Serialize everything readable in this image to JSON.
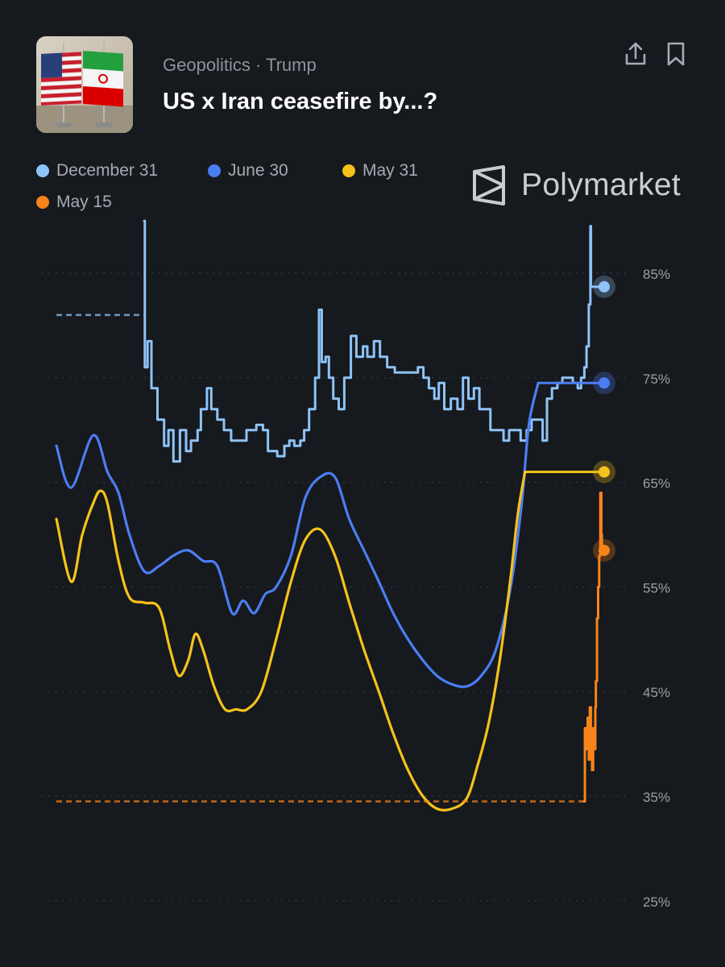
{
  "header": {
    "category": "Geopolitics · Trump",
    "title": "US x Iran ceasefire by...?",
    "thumbnail_icon": "us-iran-flags-icon",
    "share_icon": "share-icon",
    "bookmark_icon": "bookmark-icon"
  },
  "brand": {
    "name": "Polymarket",
    "logo_icon": "polymarket-logo-icon"
  },
  "colors": {
    "background": "#16191d",
    "grid": "#3a3f46",
    "tick_text": "#9aa0a6"
  },
  "chart_data": {
    "type": "line",
    "title": "",
    "xlabel": "",
    "ylabel": "",
    "ylim": [
      24,
      89
    ],
    "yticks": [
      25,
      35,
      45,
      55,
      65,
      75,
      85
    ],
    "ytick_labels": [
      "25%",
      "35%",
      "45%",
      "55%",
      "65%",
      "75%",
      "85%"
    ],
    "grid": true,
    "legend": "top-left",
    "x_domain": [
      0,
      100
    ],
    "series": [
      {
        "name": "December 31",
        "color": "#8ec3f7",
        "style": "step",
        "dashed_prefix": [
          [
            0,
            81.0
          ],
          [
            16.0,
            81.0
          ]
        ],
        "values": [
          [
            16.0,
            90.0
          ],
          [
            16.1,
            76
          ],
          [
            16.6,
            78.5
          ],
          [
            17.3,
            74
          ],
          [
            18.4,
            71
          ],
          [
            19.6,
            68.5
          ],
          [
            20.4,
            70
          ],
          [
            21.3,
            67
          ],
          [
            22.5,
            70
          ],
          [
            23.6,
            68
          ],
          [
            24.5,
            69
          ],
          [
            25.7,
            70
          ],
          [
            26.3,
            72
          ],
          [
            27.4,
            74
          ],
          [
            28.2,
            72
          ],
          [
            29.3,
            71
          ],
          [
            30.5,
            70
          ],
          [
            31.8,
            69
          ],
          [
            33.4,
            69
          ],
          [
            34.6,
            70
          ],
          [
            36.4,
            70.5
          ],
          [
            37.6,
            70
          ],
          [
            38.5,
            68
          ],
          [
            40.2,
            67.5
          ],
          [
            41.5,
            68.5
          ],
          [
            42.4,
            69
          ],
          [
            43.3,
            68.5
          ],
          [
            44.4,
            69
          ],
          [
            45.1,
            70
          ],
          [
            46.0,
            72
          ],
          [
            47.1,
            75
          ],
          [
            47.8,
            81.5
          ],
          [
            48.3,
            76.5
          ],
          [
            49.0,
            77
          ],
          [
            49.6,
            75
          ],
          [
            50.4,
            73
          ],
          [
            51.4,
            72
          ],
          [
            52.4,
            75
          ],
          [
            53.6,
            79
          ],
          [
            54.6,
            77
          ],
          [
            55.8,
            78
          ],
          [
            56.6,
            77
          ],
          [
            57.8,
            78.5
          ],
          [
            58.9,
            77
          ],
          [
            60.2,
            76
          ],
          [
            61.6,
            75.5
          ],
          [
            63.0,
            75.5
          ],
          [
            64.4,
            75.5
          ],
          [
            65.8,
            76
          ],
          [
            66.8,
            75
          ],
          [
            67.8,
            74
          ],
          [
            68.8,
            73
          ],
          [
            69.6,
            74.5
          ],
          [
            70.6,
            72
          ],
          [
            71.8,
            73
          ],
          [
            73.0,
            72
          ],
          [
            74.0,
            75
          ],
          [
            75.0,
            73
          ],
          [
            76.0,
            74
          ],
          [
            77.0,
            72
          ],
          [
            78.0,
            72
          ],
          [
            79.0,
            70
          ],
          [
            80.3,
            70
          ],
          [
            81.4,
            69
          ],
          [
            82.4,
            70
          ],
          [
            83.4,
            70
          ],
          [
            84.5,
            69
          ],
          [
            85.6,
            70
          ],
          [
            86.5,
            71
          ],
          [
            87.5,
            71
          ],
          [
            88.5,
            69
          ],
          [
            89.3,
            73
          ],
          [
            90.2,
            74
          ],
          [
            91.2,
            74.5
          ],
          [
            92.1,
            75
          ],
          [
            93.0,
            75
          ],
          [
            94.0,
            74.5
          ],
          [
            94.9,
            74
          ],
          [
            95.5,
            75
          ],
          [
            96.1,
            76
          ],
          [
            96.5,
            78
          ],
          [
            96.9,
            82
          ],
          [
            97.2,
            89.5
          ],
          [
            97.3,
            83.7
          ]
        ],
        "end_value": 83.7
      },
      {
        "name": "June 30",
        "color": "#4b7df3",
        "style": "smooth",
        "values": [
          [
            0,
            68.5
          ],
          [
            2.7,
            64.5
          ],
          [
            6.7,
            69.5
          ],
          [
            9.3,
            66
          ],
          [
            11.3,
            64
          ],
          [
            13.3,
            60
          ],
          [
            16.0,
            56.5
          ],
          [
            18.7,
            57
          ],
          [
            21.3,
            58
          ],
          [
            24.0,
            58.5
          ],
          [
            26.7,
            57.5
          ],
          [
            29.3,
            57
          ],
          [
            32.0,
            52.5
          ],
          [
            34.0,
            53.7
          ],
          [
            36.0,
            52.5
          ],
          [
            38.0,
            54.3
          ],
          [
            40.0,
            55
          ],
          [
            42.7,
            58
          ],
          [
            45.3,
            63.5
          ],
          [
            48.0,
            65.5
          ],
          [
            50.7,
            65.5
          ],
          [
            53.3,
            61.5
          ],
          [
            56.0,
            58.5
          ],
          [
            58.7,
            55.5
          ],
          [
            61.3,
            52.5
          ],
          [
            64.0,
            50
          ],
          [
            66.7,
            48
          ],
          [
            69.3,
            46.5
          ],
          [
            72.0,
            45.7
          ],
          [
            74.7,
            45.5
          ],
          [
            77.3,
            46.5
          ],
          [
            80.0,
            49
          ],
          [
            82.7,
            55
          ],
          [
            84.7,
            63
          ],
          [
            86.0,
            70.5
          ],
          [
            87.7,
            74.5
          ]
        ],
        "end_value": 74.5
      },
      {
        "name": "May 31",
        "color": "#f5c21b",
        "style": "smooth",
        "values": [
          [
            0,
            61.5
          ],
          [
            2.7,
            55.5
          ],
          [
            4.7,
            60
          ],
          [
            6.7,
            63
          ],
          [
            8.0,
            64.2
          ],
          [
            9.3,
            63
          ],
          [
            11.3,
            57.5
          ],
          [
            13.3,
            54
          ],
          [
            16.0,
            53.5
          ],
          [
            18.7,
            53
          ],
          [
            20.7,
            49
          ],
          [
            22.3,
            46.5
          ],
          [
            24.0,
            48
          ],
          [
            25.3,
            50.5
          ],
          [
            26.7,
            49
          ],
          [
            28.7,
            45.5
          ],
          [
            30.7,
            43.3
          ],
          [
            32.7,
            43.3
          ],
          [
            34.7,
            43.3
          ],
          [
            37.3,
            45
          ],
          [
            40.0,
            50
          ],
          [
            42.7,
            55.5
          ],
          [
            45.3,
            59.5
          ],
          [
            48.0,
            60.5
          ],
          [
            50.7,
            58
          ],
          [
            53.3,
            53.5
          ],
          [
            56.0,
            49
          ],
          [
            58.7,
            45
          ],
          [
            61.3,
            41
          ],
          [
            64.0,
            37.5
          ],
          [
            66.7,
            35
          ],
          [
            69.3,
            33.8
          ],
          [
            72.0,
            33.8
          ],
          [
            74.7,
            34.8
          ],
          [
            76.7,
            38
          ],
          [
            78.7,
            42
          ],
          [
            80.7,
            48
          ],
          [
            82.7,
            56
          ],
          [
            84.0,
            62
          ],
          [
            85.3,
            66
          ]
        ],
        "end_value": 66
      },
      {
        "name": "May 15",
        "color": "#f6831c",
        "style": "step",
        "dashed_prefix": [
          [
            0,
            34.5
          ],
          [
            96.0,
            34.5
          ]
        ],
        "values": [
          [
            96.0,
            34.5
          ],
          [
            96.2,
            41.5
          ],
          [
            96.5,
            39.5
          ],
          [
            96.7,
            42.5
          ],
          [
            96.9,
            38.5
          ],
          [
            97.1,
            43.5
          ],
          [
            97.3,
            40.5
          ],
          [
            97.5,
            37.5
          ],
          [
            97.7,
            41.5
          ],
          [
            97.9,
            39.5
          ],
          [
            98.1,
            43.5
          ],
          [
            98.2,
            46
          ],
          [
            98.4,
            52
          ],
          [
            98.6,
            55
          ],
          [
            98.8,
            58
          ],
          [
            99.0,
            64
          ],
          [
            99.2,
            60
          ],
          [
            99.3,
            58.5
          ]
        ],
        "end_value": 58.5
      }
    ]
  }
}
